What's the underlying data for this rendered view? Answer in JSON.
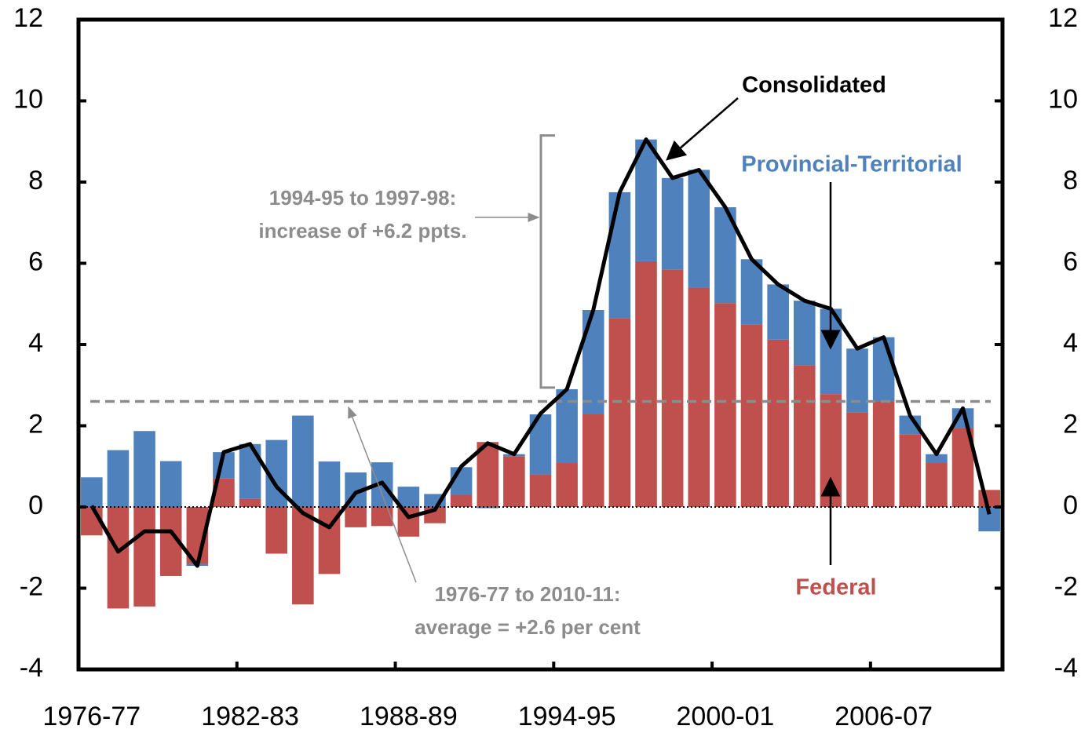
{
  "chart_data": {
    "type": "bar",
    "stacked": true,
    "categories": [
      "1976-77",
      null,
      null,
      null,
      null,
      null,
      "1982-83",
      null,
      null,
      null,
      null,
      null,
      "1988-89",
      null,
      null,
      null,
      null,
      null,
      "1994-95",
      null,
      null,
      null,
      null,
      null,
      "2000-01",
      null,
      null,
      null,
      null,
      null,
      "2006-07",
      null,
      null,
      null,
      null
    ],
    "series": [
      {
        "name": "Federal",
        "color": "#c0504d",
        "values": [
          -0.7,
          -2.5,
          -2.45,
          -1.7,
          -1.4,
          0.7,
          0.2,
          -1.15,
          -2.4,
          -1.65,
          -0.5,
          -0.47,
          -0.73,
          -0.4,
          0.3,
          1.6,
          1.25,
          0.8,
          1.1,
          2.28,
          4.65,
          6.05,
          5.85,
          5.4,
          5.02,
          4.5,
          4.12,
          3.48,
          2.78,
          2.32,
          2.6,
          1.78,
          1.1,
          1.95,
          0.42
        ]
      },
      {
        "name": "Provincial-Territorial",
        "color": "#4f81bd",
        "values": [
          0.73,
          1.4,
          1.87,
          1.13,
          -0.05,
          0.65,
          1.35,
          1.65,
          2.25,
          1.12,
          0.85,
          1.1,
          0.5,
          0.32,
          0.68,
          -0.03,
          0.05,
          1.48,
          1.8,
          2.57,
          3.1,
          3.0,
          2.25,
          2.9,
          2.36,
          1.6,
          1.36,
          1.6,
          2.1,
          1.58,
          1.58,
          0.47,
          0.2,
          0.48,
          -0.6
        ]
      },
      {
        "name": "Consolidated",
        "color": "#000000",
        "type": "line",
        "values": [
          0.03,
          -1.1,
          -0.6,
          -0.6,
          -1.45,
          1.35,
          1.55,
          0.5,
          -0.15,
          -0.5,
          0.35,
          0.6,
          -0.25,
          -0.07,
          1.0,
          1.57,
          1.3,
          2.3,
          2.9,
          4.85,
          7.75,
          9.05,
          8.1,
          8.3,
          7.38,
          6.1,
          5.48,
          5.08,
          4.88,
          3.9,
          4.18,
          2.25,
          1.3,
          2.43,
          -0.18
        ]
      }
    ],
    "average": 2.6,
    "annotations": [
      "1994-95 to 1997-98:",
      "increase of +6.2 ppts.",
      "1976-77 to 2010-11:",
      "average = +2.6 per cent"
    ],
    "ylim": [
      -4,
      12
    ],
    "yticks": [
      -4,
      -2,
      0,
      2,
      4,
      6,
      8,
      10,
      12
    ],
    "y2lim": [
      -4,
      12
    ],
    "y2ticks": [
      -4,
      -2,
      0,
      2,
      4,
      6,
      8,
      10,
      12
    ]
  }
}
